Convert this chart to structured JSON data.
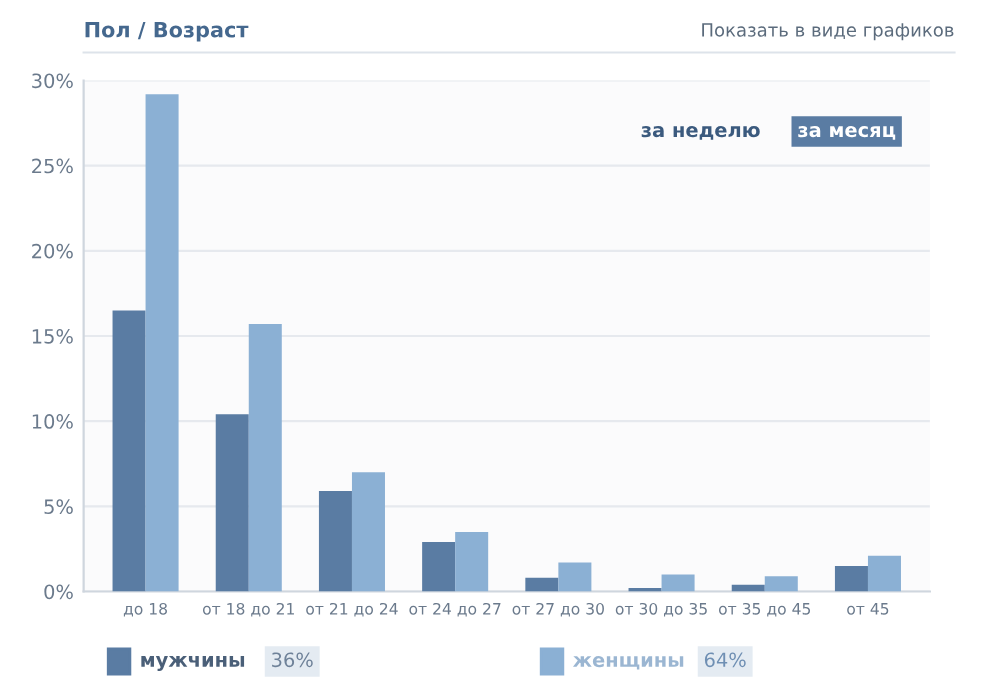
{
  "chart_data": {
    "type": "bar",
    "title": "Пол / Возраст",
    "categories": [
      "до 18",
      "от 18 до 21",
      "от 21 до 24",
      "от 24 до 27",
      "от 27 до 30",
      "от 30 до 35",
      "от 35 до 45",
      "от 45"
    ],
    "series": [
      {
        "name": "мужчины",
        "color": "#5a7ca3",
        "values": [
          16.5,
          10.4,
          5.9,
          2.9,
          0.8,
          0.2,
          0.4,
          1.5
        ]
      },
      {
        "name": "женщины",
        "color": "#8bb0d4",
        "values": [
          29.2,
          15.7,
          7.0,
          3.5,
          1.7,
          1.0,
          0.9,
          2.1
        ]
      }
    ],
    "ylim": [
      0,
      30
    ],
    "yticks": [
      {
        "value": 0,
        "label": "0%"
      },
      {
        "value": 5,
        "label": "5%"
      },
      {
        "value": 10,
        "label": "10%"
      },
      {
        "value": 15,
        "label": "15%"
      },
      {
        "value": 20,
        "label": "20%"
      },
      {
        "value": 25,
        "label": "25%"
      },
      {
        "value": 30,
        "label": "30%"
      }
    ],
    "grid": "y",
    "legend": "bottom",
    "annotations": [
      "Показать в виде графиков",
      "за неделю",
      "за месяц",
      "36%",
      "64%"
    ]
  }
}
